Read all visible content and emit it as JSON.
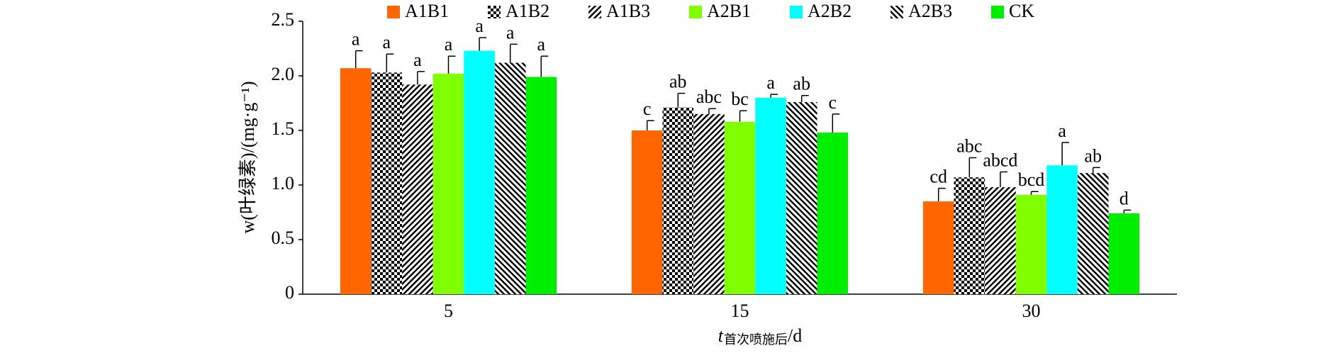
{
  "chart_data": {
    "type": "bar",
    "y_label": "w(叶绿素)/(mg·g⁻¹)",
    "x_label": {
      "symbol": "t",
      "subscript": "首次喷施后",
      "unit": "/d"
    },
    "categories": [
      "5",
      "15",
      "30"
    ],
    "ylim": [
      0,
      2.5
    ],
    "yticks": [
      0,
      0.5,
      {
        "value": 1,
        "label": "1.0"
      },
      1.5,
      {
        "value": 2,
        "label": "2.0"
      },
      2.5
    ],
    "series": [
      {
        "name": "A1B1",
        "color": "#ff6600",
        "pattern": "solid",
        "values": [
          2.07,
          1.5,
          0.85
        ],
        "errors": [
          0.16,
          0.09,
          0.12
        ],
        "letters": [
          "a",
          "c",
          "cd"
        ]
      },
      {
        "name": "A1B2",
        "color": "#000000",
        "pattern": "checker",
        "values": [
          2.03,
          1.71,
          1.07
        ],
        "errors": [
          0.17,
          0.13,
          0.18
        ],
        "letters": [
          "a",
          "ab",
          "abc"
        ]
      },
      {
        "name": "A1B3",
        "color": "#000000",
        "pattern": "diagonal",
        "values": [
          1.92,
          1.65,
          0.98
        ],
        "errors": [
          0.12,
          0.05,
          0.14
        ],
        "letters": [
          "a",
          "abc",
          "abcd"
        ]
      },
      {
        "name": "A2B1",
        "color": "#80ff00",
        "pattern": "solid",
        "values": [
          2.02,
          1.58,
          0.91
        ],
        "errors": [
          0.16,
          0.1,
          0.03
        ],
        "letters": [
          "a",
          "bc",
          "bcd"
        ]
      },
      {
        "name": "A2B2",
        "color": "#00ffff",
        "pattern": "solid",
        "values": [
          2.23,
          1.8,
          1.18
        ],
        "errors": [
          0.12,
          0.03,
          0.21
        ],
        "letters": [
          "a",
          "a",
          "a"
        ]
      },
      {
        "name": "A2B3",
        "color": "#000000",
        "pattern": "diagonal-reverse",
        "values": [
          2.12,
          1.76,
          1.11
        ],
        "errors": [
          0.17,
          0.06,
          0.05
        ],
        "letters": [
          "a",
          "ab",
          "ab"
        ]
      },
      {
        "name": "CK",
        "color": "#00ee00",
        "pattern": "solid",
        "values": [
          1.99,
          1.48,
          0.74
        ],
        "errors": [
          0.19,
          0.17,
          0.03
        ],
        "letters": [
          "a",
          "c",
          "d"
        ]
      }
    ]
  }
}
